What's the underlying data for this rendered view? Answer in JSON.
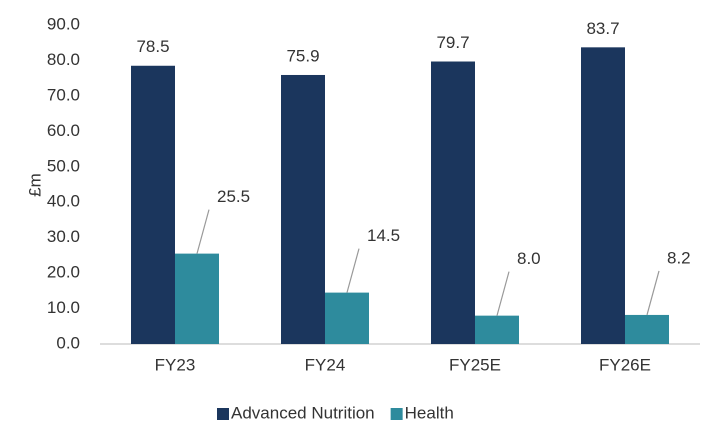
{
  "chart_data": {
    "type": "bar",
    "y_label": "£m",
    "categories": [
      "FY23",
      "FY24",
      "FY25E",
      "FY26E"
    ],
    "series": [
      {
        "name": "Advanced Nutrition",
        "color": "#1b365d",
        "values": [
          78.5,
          75.9,
          79.7,
          83.7
        ]
      },
      {
        "name": "Health",
        "color": "#2e8b9d",
        "values": [
          25.5,
          14.5,
          8.0,
          8.2
        ],
        "value_labels": [
          "25.5",
          "14.5",
          "8.0",
          "8.2"
        ]
      }
    ],
    "ylim": [
      0,
      90
    ],
    "yticks": [
      {
        "value": 0,
        "label": "0.0"
      },
      {
        "value": 10,
        "label": "10.0"
      },
      {
        "value": 20,
        "label": "20.0"
      },
      {
        "value": 30,
        "label": "30.0"
      },
      {
        "value": 40,
        "label": "40.0"
      },
      {
        "value": 50,
        "label": "50.0"
      },
      {
        "value": 60,
        "label": "60.0"
      },
      {
        "value": 70,
        "label": "70.0"
      },
      {
        "value": 80,
        "label": "80.0"
      },
      {
        "value": 90,
        "label": "90.0"
      }
    ],
    "grid": false,
    "legend": "bottom"
  }
}
